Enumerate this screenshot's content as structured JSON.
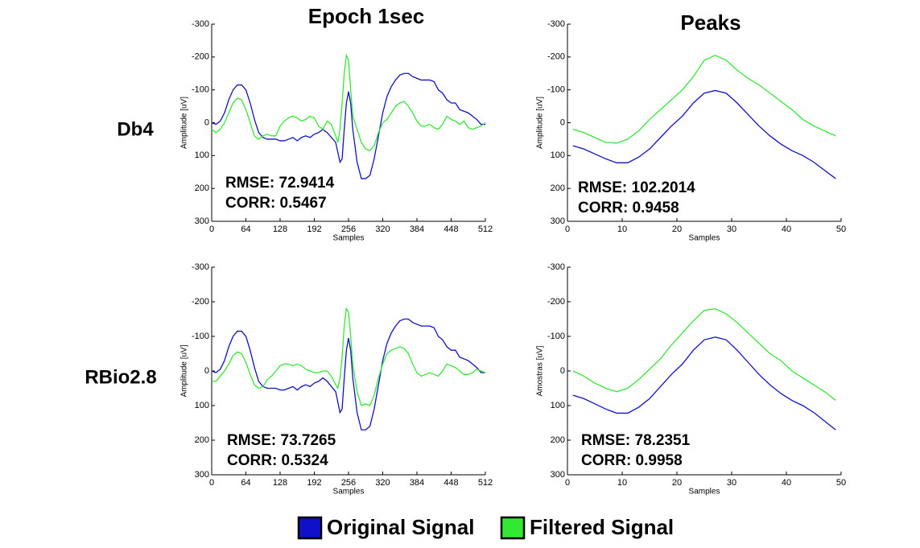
{
  "column_titles": [
    "Epoch 1sec",
    "Peaks"
  ],
  "row_labels": [
    "Db4",
    "RBio2.8"
  ],
  "chart_data": [
    {
      "type": "line",
      "xlabel": "Samples",
      "ylabel": "Amplitude [uV]",
      "xlim": [
        0,
        512
      ],
      "xticks": [
        0,
        64,
        128,
        192,
        256,
        320,
        384,
        448,
        512
      ],
      "ylim": [
        300,
        -300
      ],
      "yticks": [
        -300,
        -200,
        -100,
        0,
        100,
        200,
        300
      ],
      "annotations": [
        "RMSE: 72.9414",
        "CORR: 0.5467"
      ],
      "x": [
        0,
        8,
        16,
        24,
        32,
        40,
        48,
        56,
        64,
        72,
        80,
        88,
        96,
        104,
        112,
        120,
        128,
        136,
        144,
        152,
        160,
        168,
        176,
        184,
        192,
        200,
        208,
        216,
        224,
        232,
        236,
        240,
        244,
        248,
        252,
        256,
        260,
        264,
        272,
        280,
        288,
        296,
        304,
        312,
        320,
        328,
        336,
        344,
        352,
        360,
        368,
        376,
        384,
        392,
        400,
        408,
        416,
        424,
        432,
        440,
        448,
        456,
        464,
        472,
        480,
        488,
        496,
        504,
        512
      ],
      "series": [
        {
          "name": "Original Signal",
          "color": "#1010c8",
          "values": [
            0,
            5,
            -5,
            -30,
            -70,
            -100,
            -115,
            -115,
            -100,
            -60,
            -10,
            30,
            45,
            50,
            50,
            50,
            55,
            55,
            50,
            45,
            55,
            45,
            40,
            45,
            35,
            30,
            20,
            30,
            45,
            60,
            90,
            120,
            110,
            20,
            -60,
            -95,
            -60,
            20,
            120,
            170,
            170,
            160,
            110,
            40,
            -30,
            -80,
            -110,
            -130,
            -145,
            -150,
            -150,
            -140,
            -135,
            -130,
            -130,
            -130,
            -125,
            -100,
            -90,
            -70,
            -60,
            -60,
            -40,
            -35,
            -30,
            -20,
            -10,
            5,
            5
          ]
        },
        {
          "name": "Filtered Signal",
          "color": "#33e833",
          "values": [
            20,
            30,
            20,
            0,
            -30,
            -60,
            -75,
            -70,
            -40,
            0,
            40,
            50,
            40,
            35,
            40,
            40,
            10,
            -5,
            -15,
            -20,
            -15,
            -5,
            -10,
            -20,
            -15,
            10,
            20,
            -5,
            5,
            40,
            60,
            20,
            -60,
            -150,
            -205,
            -190,
            -100,
            -20,
            20,
            60,
            80,
            85,
            70,
            30,
            0,
            -10,
            -30,
            -50,
            -60,
            -65,
            -50,
            -30,
            -5,
            10,
            10,
            5,
            15,
            20,
            5,
            -20,
            -10,
            -5,
            5,
            -5,
            15,
            20,
            15,
            10,
            0
          ]
        }
      ]
    },
    {
      "type": "line",
      "xlabel": "Samples",
      "ylabel": "Amplitude [uV]",
      "xlim": [
        0,
        50
      ],
      "xticks": [
        0,
        10,
        20,
        30,
        40,
        50
      ],
      "ylim": [
        300,
        -300
      ],
      "yticks": [
        -300,
        -200,
        -100,
        0,
        100,
        200,
        300
      ],
      "annotations": [
        "RMSE: 102.2014",
        "CORR: 0.9458"
      ],
      "x": [
        1,
        3,
        5,
        7,
        9,
        11,
        13,
        15,
        17,
        19,
        21,
        23,
        25,
        27,
        29,
        31,
        33,
        35,
        37,
        39,
        41,
        43,
        45,
        47,
        49
      ],
      "series": [
        {
          "name": "Original Signal",
          "color": "#1010c8",
          "values": [
            70,
            80,
            95,
            110,
            122,
            122,
            105,
            80,
            45,
            10,
            -20,
            -60,
            -90,
            -98,
            -90,
            -60,
            -25,
            10,
            40,
            65,
            85,
            100,
            120,
            145,
            170
          ]
        },
        {
          "name": "Filtered Signal",
          "color": "#33e833",
          "values": [
            20,
            30,
            45,
            60,
            62,
            50,
            25,
            -10,
            -40,
            -70,
            -100,
            -140,
            -190,
            -205,
            -190,
            -160,
            -135,
            -115,
            -90,
            -65,
            -40,
            -10,
            10,
            25,
            40
          ]
        }
      ]
    },
    {
      "type": "line",
      "xlabel": "Samples",
      "ylabel": "Amplitude [uV]",
      "xlim": [
        0,
        512
      ],
      "xticks": [
        0,
        64,
        128,
        192,
        256,
        320,
        384,
        448,
        512
      ],
      "ylim": [
        300,
        -300
      ],
      "yticks": [
        -300,
        -200,
        -100,
        0,
        100,
        200,
        300
      ],
      "annotations": [
        "RMSE: 73.7265",
        "CORR: 0.5324"
      ],
      "x": [
        0,
        8,
        16,
        24,
        32,
        40,
        48,
        56,
        64,
        72,
        80,
        88,
        96,
        104,
        112,
        120,
        128,
        136,
        144,
        152,
        160,
        168,
        176,
        184,
        192,
        200,
        208,
        216,
        224,
        232,
        236,
        240,
        244,
        248,
        252,
        256,
        260,
        264,
        272,
        280,
        288,
        296,
        304,
        312,
        320,
        328,
        336,
        344,
        352,
        360,
        368,
        376,
        384,
        392,
        400,
        408,
        416,
        424,
        432,
        440,
        448,
        456,
        464,
        472,
        480,
        488,
        496,
        504,
        512
      ],
      "series": [
        {
          "name": "Original Signal",
          "color": "#1010c8",
          "values": [
            0,
            5,
            -5,
            -30,
            -70,
            -100,
            -115,
            -115,
            -100,
            -60,
            -10,
            30,
            45,
            50,
            50,
            50,
            55,
            55,
            50,
            45,
            55,
            45,
            40,
            45,
            35,
            30,
            20,
            30,
            45,
            60,
            90,
            120,
            110,
            20,
            -60,
            -95,
            -60,
            20,
            120,
            170,
            170,
            160,
            110,
            40,
            -30,
            -80,
            -110,
            -130,
            -145,
            -150,
            -150,
            -140,
            -135,
            -130,
            -130,
            -130,
            -125,
            -100,
            -90,
            -70,
            -60,
            -60,
            -40,
            -35,
            -30,
            -20,
            -10,
            5,
            5
          ]
        },
        {
          "name": "Filtered Signal",
          "color": "#33e833",
          "values": [
            30,
            30,
            15,
            0,
            -20,
            -45,
            -55,
            -50,
            -25,
            10,
            40,
            50,
            45,
            25,
            15,
            0,
            -15,
            -20,
            -20,
            -15,
            -20,
            -15,
            -5,
            0,
            5,
            5,
            0,
            0,
            15,
            40,
            50,
            20,
            -40,
            -130,
            -180,
            -170,
            -100,
            -20,
            60,
            100,
            95,
            100,
            70,
            20,
            -20,
            -50,
            -60,
            -65,
            -70,
            -65,
            -50,
            -20,
            5,
            15,
            10,
            5,
            10,
            15,
            0,
            -20,
            -15,
            -10,
            0,
            10,
            10,
            5,
            -5,
            0,
            5
          ]
        }
      ]
    },
    {
      "type": "line",
      "xlabel": "Samples",
      "ylabel": "Amostras [uV]",
      "xlim": [
        0,
        50
      ],
      "xticks": [
        0,
        10,
        20,
        30,
        40,
        50
      ],
      "ylim": [
        300,
        -300
      ],
      "yticks": [
        -300,
        -200,
        -100,
        0,
        100,
        200,
        300
      ],
      "annotations": [
        "RMSE: 78.2351",
        "CORR: 0.9958"
      ],
      "x": [
        1,
        3,
        5,
        7,
        9,
        11,
        13,
        15,
        17,
        19,
        21,
        23,
        25,
        27,
        29,
        31,
        33,
        35,
        37,
        39,
        41,
        43,
        45,
        47,
        49
      ],
      "series": [
        {
          "name": "Original Signal",
          "color": "#1010c8",
          "values": [
            70,
            80,
            95,
            110,
            122,
            122,
            105,
            80,
            45,
            10,
            -20,
            -60,
            -90,
            -98,
            -90,
            -60,
            -25,
            10,
            40,
            65,
            85,
            100,
            120,
            145,
            170
          ]
        },
        {
          "name": "Filtered Signal",
          "color": "#33e833",
          "values": [
            0,
            15,
            35,
            50,
            60,
            50,
            25,
            -5,
            -35,
            -75,
            -110,
            -145,
            -175,
            -180,
            -165,
            -140,
            -110,
            -80,
            -50,
            -30,
            0,
            20,
            40,
            60,
            85
          ]
        }
      ]
    }
  ]
}
